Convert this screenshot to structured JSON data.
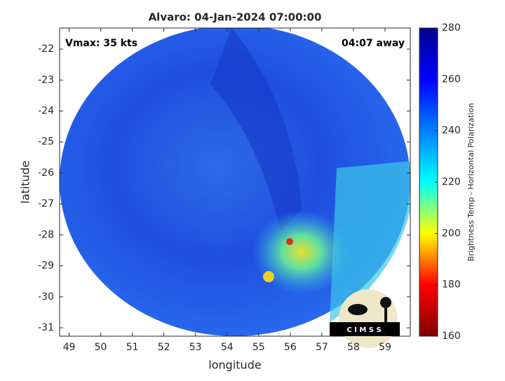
{
  "chart_data": {
    "type": "image",
    "title": "Alvaro: 04-Jan-2024 07:00:00",
    "xlabel": "longitude",
    "ylabel": "latitude",
    "annotations": [
      "Vmax: 35 kts",
      "04:07 away"
    ],
    "xlim": [
      48.7,
      59.8
    ],
    "xticks": [
      49,
      50,
      51,
      52,
      53,
      54,
      55,
      56,
      57,
      58,
      59
    ],
    "ylim": [
      -31.27,
      -21.32
    ],
    "yticks": [
      -31,
      -30,
      -29,
      -28,
      -27,
      -26,
      -25,
      -24,
      -23,
      -22
    ],
    "colorbar": {
      "label": "Brightness Temp - Horizontal Polarization",
      "colormap": "jet",
      "clim": [
        160,
        280
      ],
      "ticks": [
        160,
        180,
        200,
        220,
        240,
        260,
        280
      ]
    },
    "logo_text": "C I M S S"
  }
}
